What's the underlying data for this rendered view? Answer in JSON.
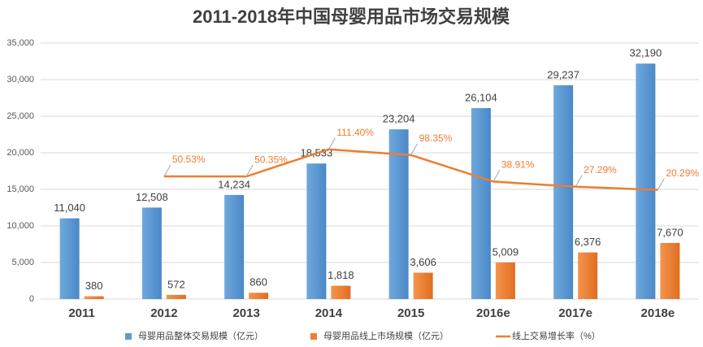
{
  "chart_data": {
    "type": "bar",
    "title": "2011-2018年中国母婴用品市场交易规模",
    "categories": [
      "2011",
      "2012",
      "2013",
      "2014",
      "2015",
      "2016e",
      "2017e",
      "2018e"
    ],
    "series": [
      {
        "name": "母婴用品整体交易规模（亿元）",
        "color": "#5b9bd5",
        "values": [
          11040,
          12508,
          14234,
          18533,
          23204,
          26104,
          29237,
          32190
        ],
        "value_labels": [
          "11,040",
          "12,508",
          "14,234",
          "18,533",
          "23,204",
          "26,104",
          "29,237",
          "32,190"
        ]
      },
      {
        "name": "母婴用品线上市场规模（亿元）",
        "color": "#ed7d31",
        "values": [
          380,
          572,
          860,
          1818,
          3606,
          5009,
          6376,
          7670
        ],
        "value_labels": [
          "380",
          "572",
          "860",
          "1,818",
          "3,606",
          "5,009",
          "6,376",
          "7,670"
        ]
      },
      {
        "name": "线上交易增长率（%）",
        "color": "#ed7d31",
        "type": "line",
        "axis": "y2",
        "values": [
          null,
          50.53,
          50.35,
          111.4,
          98.35,
          38.91,
          27.29,
          20.29
        ],
        "value_labels": [
          null,
          "50.53%",
          "50.35%",
          "111.40%",
          "98.35%",
          "38.91%",
          "27.29%",
          "20.29%"
        ]
      }
    ],
    "ylim": [
      0,
      35000
    ],
    "yticks": [
      0,
      {
        "value": 5000,
        "label": "5,000"
      },
      {
        "value": 10000,
        "label": "10,000"
      },
      {
        "value": 15000,
        "label": "15,000"
      },
      {
        "value": 20000,
        "label": "20,000"
      },
      {
        "value": 25000,
        "label": "25,000"
      },
      {
        "value": 30000,
        "label": "30,000"
      },
      {
        "value": 35000,
        "label": "35,000"
      }
    ],
    "y2lim": [
      -225,
      350
    ],
    "grid": true,
    "legend": "bottom"
  }
}
